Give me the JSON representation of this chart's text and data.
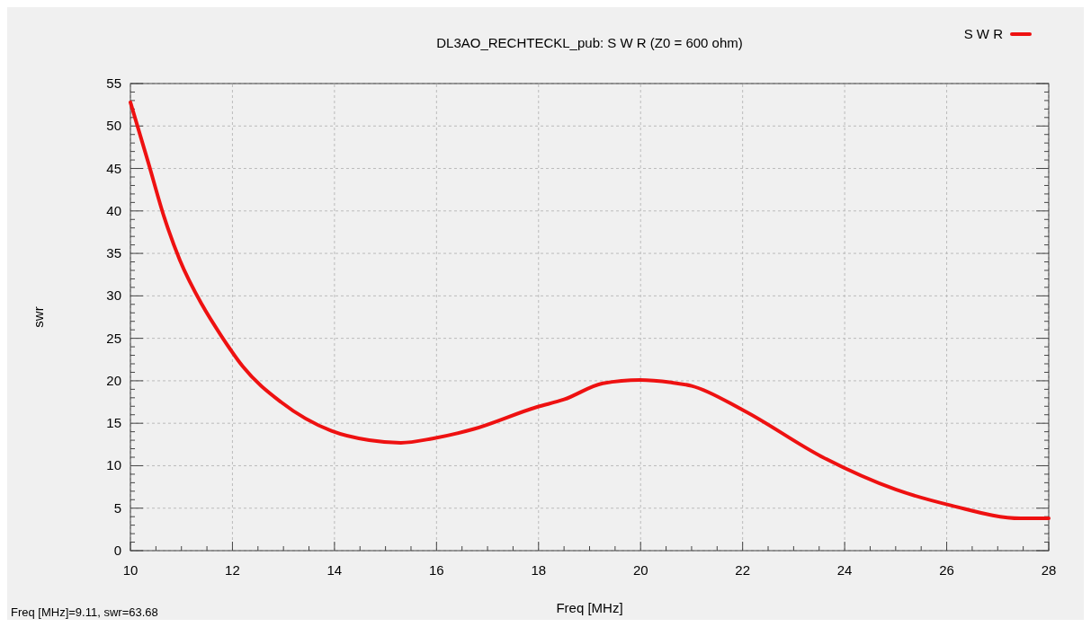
{
  "chart_data": {
    "type": "line",
    "title": "DL3AO_RECHTECKL_pub: S W R (Z0 = 600 ohm)",
    "xlabel": "Freq [MHz]",
    "ylabel": "swr",
    "annotations": [
      "Freq [MHz]=9.11, swr=63.68"
    ],
    "xlim": [
      10,
      28
    ],
    "xticks": [
      10,
      12,
      14,
      16,
      18,
      20,
      22,
      24,
      26,
      28
    ],
    "ylim": [
      0,
      55
    ],
    "yticks": [
      0,
      5,
      10,
      15,
      20,
      25,
      30,
      35,
      40,
      45,
      50,
      55
    ],
    "grid": true,
    "legend": "top right",
    "marker": "none",
    "line_style": "solid",
    "series": [
      {
        "name": "S W R",
        "color": "#ee1111",
        "x": [
          10,
          10.35,
          10.66,
          10.97,
          11.4,
          11.78,
          12.2,
          12.95,
          13.94,
          14.68,
          15.3,
          15.92,
          16.72,
          17.96,
          18.5,
          19.26,
          19.99,
          20.6,
          21,
          22.02,
          23.57,
          25,
          26.1,
          27.45,
          28
        ],
        "values": [
          52.8,
          45.7,
          39.3,
          34.2,
          29,
          25.3,
          21.7,
          17.5,
          14.1,
          13,
          12.7,
          13.2,
          14.3,
          16.9,
          17.8,
          19.7,
          20.1,
          19.8,
          19.4,
          16.5,
          11,
          7.2,
          5.3,
          3.8,
          3.8
        ]
      }
    ]
  }
}
